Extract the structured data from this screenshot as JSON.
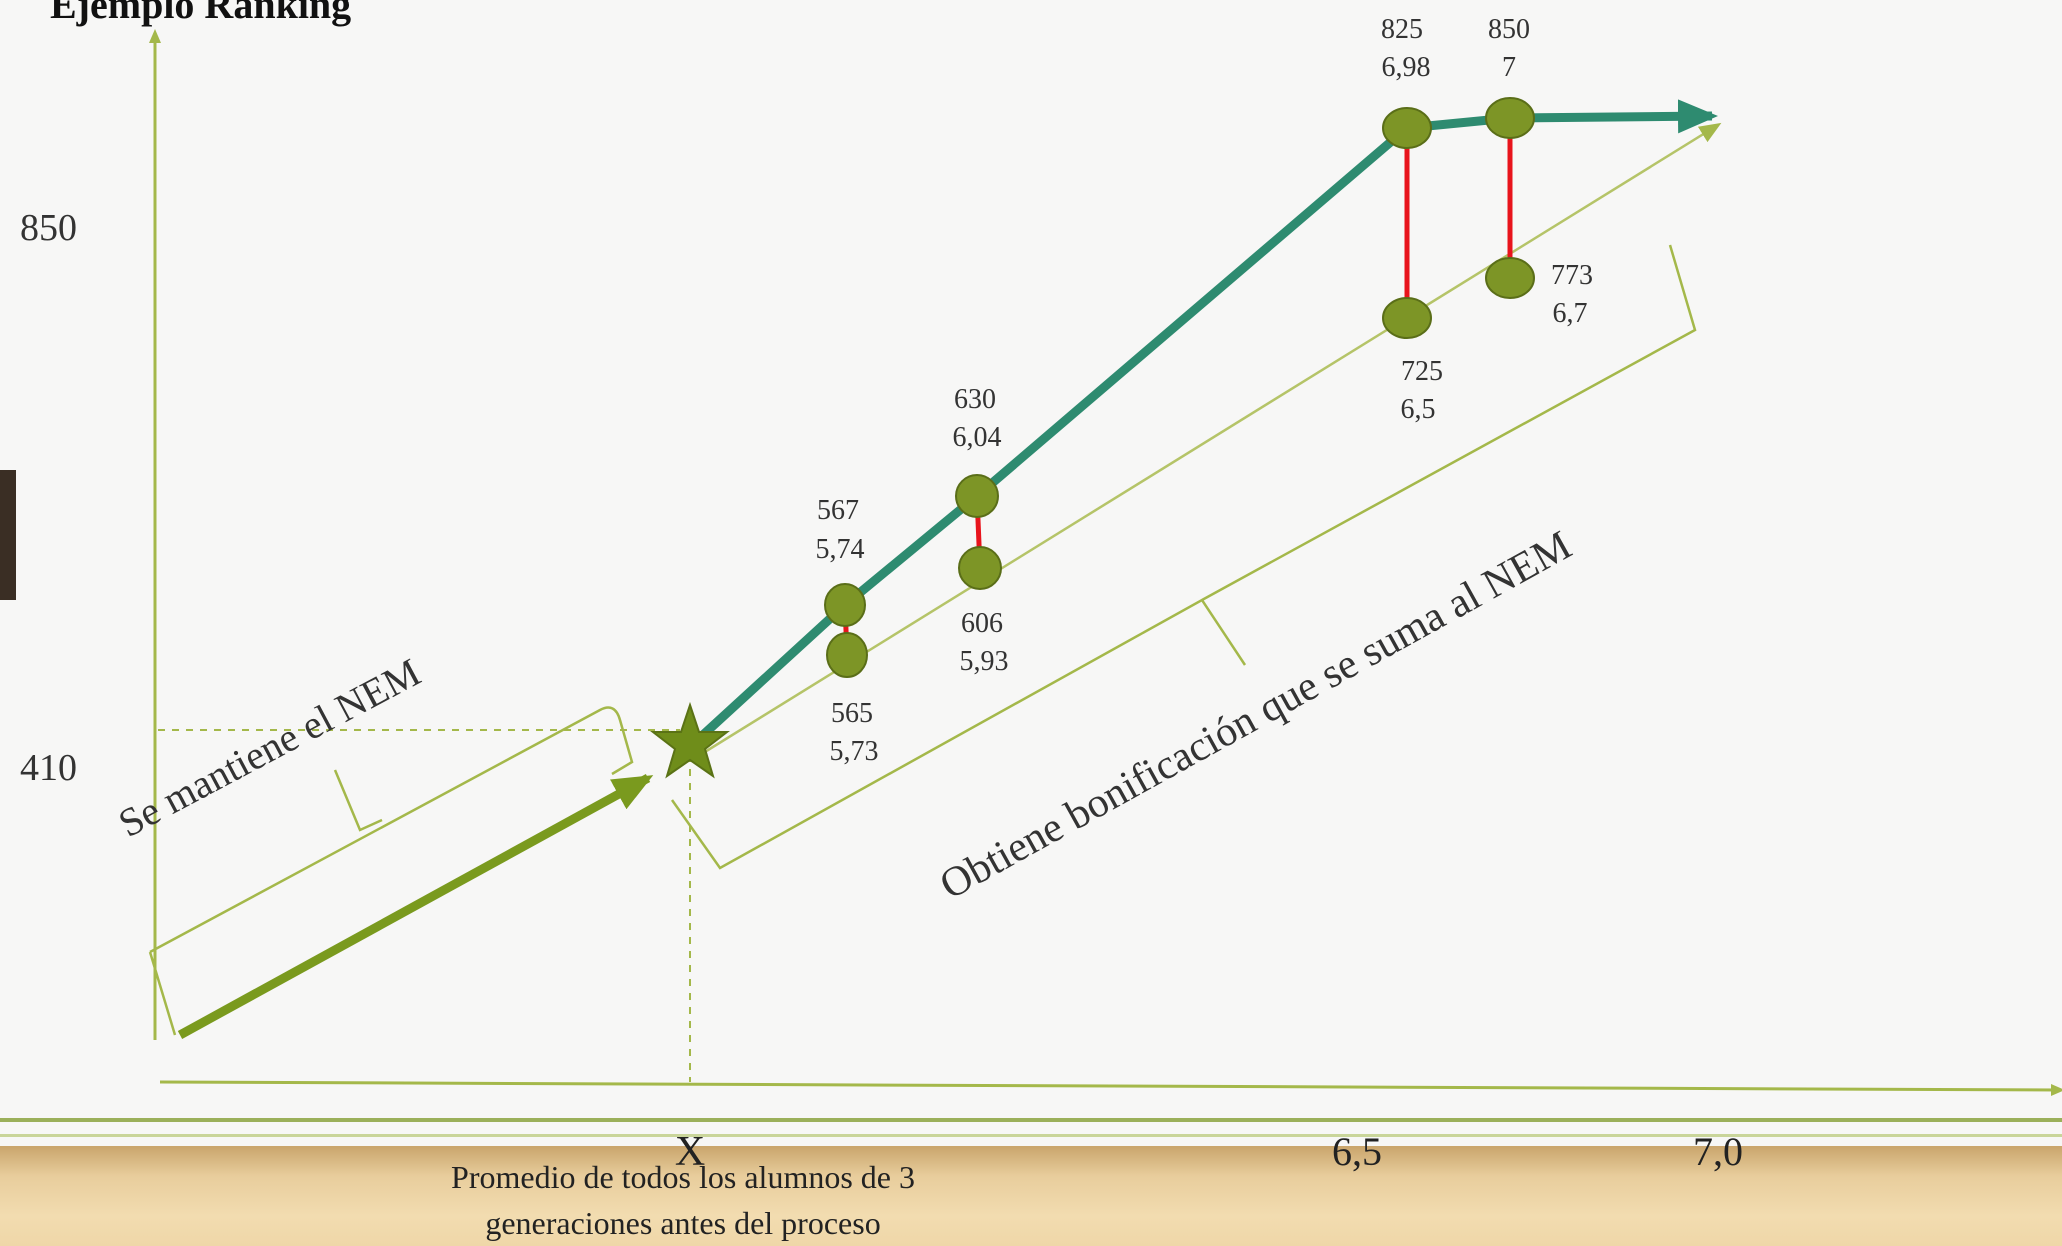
{
  "title": "Ejemplo Ranking",
  "y_ticks": [
    "850",
    "410"
  ],
  "x_ticks": [
    "X",
    "6,5",
    "7,0"
  ],
  "x_note": [
    "Promedio de todos los alumnos de 3",
    "generaciones antes del proceso"
  ],
  "brace_left_label": "Se mantiene el NEM",
  "brace_right_label": "Obtiene bonificación que se suma al NEM",
  "points_upper": [
    {
      "ranking": "567",
      "nem": "5,74"
    },
    {
      "ranking": "630",
      "nem": "6,04"
    },
    {
      "ranking": "825",
      "nem": "6,98"
    },
    {
      "ranking": "850",
      "nem": "7"
    }
  ],
  "points_lower": [
    {
      "ranking": "565",
      "nem": "5,73"
    },
    {
      "ranking": "606",
      "nem": "5,93"
    },
    {
      "ranking": "725",
      "nem": "6,5"
    },
    {
      "ranking": "773",
      "nem": "6,7"
    }
  ],
  "colors": {
    "teal_line": "#2e8b70",
    "olive_arrow": "#7a9a1e",
    "dot_fill": "#7d9526",
    "dot_stroke": "#5a6e18",
    "connector": "#e8141c",
    "axis": "#a4b84a",
    "star": "#6f8d1a"
  }
}
